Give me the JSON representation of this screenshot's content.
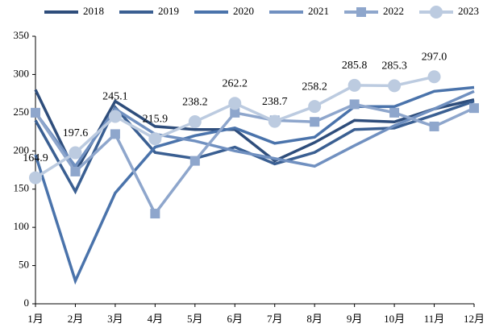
{
  "chart_data": {
    "type": "line",
    "categories": [
      "1月",
      "2月",
      "3月",
      "4月",
      "5月",
      "6月",
      "7月",
      "8月",
      "9月",
      "10月",
      "11月",
      "12月"
    ],
    "series": [
      {
        "name": "2018",
        "color": "#2e4d7b",
        "values": [
          280,
          172,
          265,
          232,
          228,
          228,
          187,
          211,
          240,
          238,
          255,
          267
        ]
      },
      {
        "name": "2019",
        "color": "#3a5f92",
        "values": [
          240,
          147,
          257,
          198,
          190,
          205,
          183,
          198,
          228,
          230,
          247,
          265
        ]
      },
      {
        "name": "2020",
        "color": "#4a73ab",
        "values": [
          195,
          30,
          145,
          205,
          220,
          230,
          210,
          218,
          258,
          258,
          278,
          283
        ]
      },
      {
        "name": "2021",
        "color": "#7090c0",
        "values": [
          250,
          180,
          255,
          222,
          213,
          200,
          190,
          180,
          207,
          233,
          255,
          278
        ]
      },
      {
        "name": "2022",
        "color": "#8ea6cc",
        "marker": "square",
        "values": [
          250,
          173,
          222,
          118,
          187,
          250,
          240,
          238,
          261,
          250,
          232,
          256
        ]
      },
      {
        "name": "2023",
        "color": "#bccbe0",
        "marker": "circle",
        "values": [
          164.9,
          197.6,
          245.1,
          215.9,
          238.2,
          262.2,
          238.7,
          258.2,
          285.8,
          285.3,
          297.0,
          null
        ],
        "value_labels": [
          "164.9",
          "197.6",
          "245.1",
          "215.9",
          "238.2",
          "262.2",
          "238.7",
          "258.2",
          "285.8",
          "285.3",
          "297.0",
          null
        ]
      }
    ],
    "ylim": [
      0,
      350
    ],
    "yticks": [
      0,
      50,
      100,
      150,
      200,
      250,
      300,
      350
    ],
    "grid": false,
    "legend": "top"
  }
}
